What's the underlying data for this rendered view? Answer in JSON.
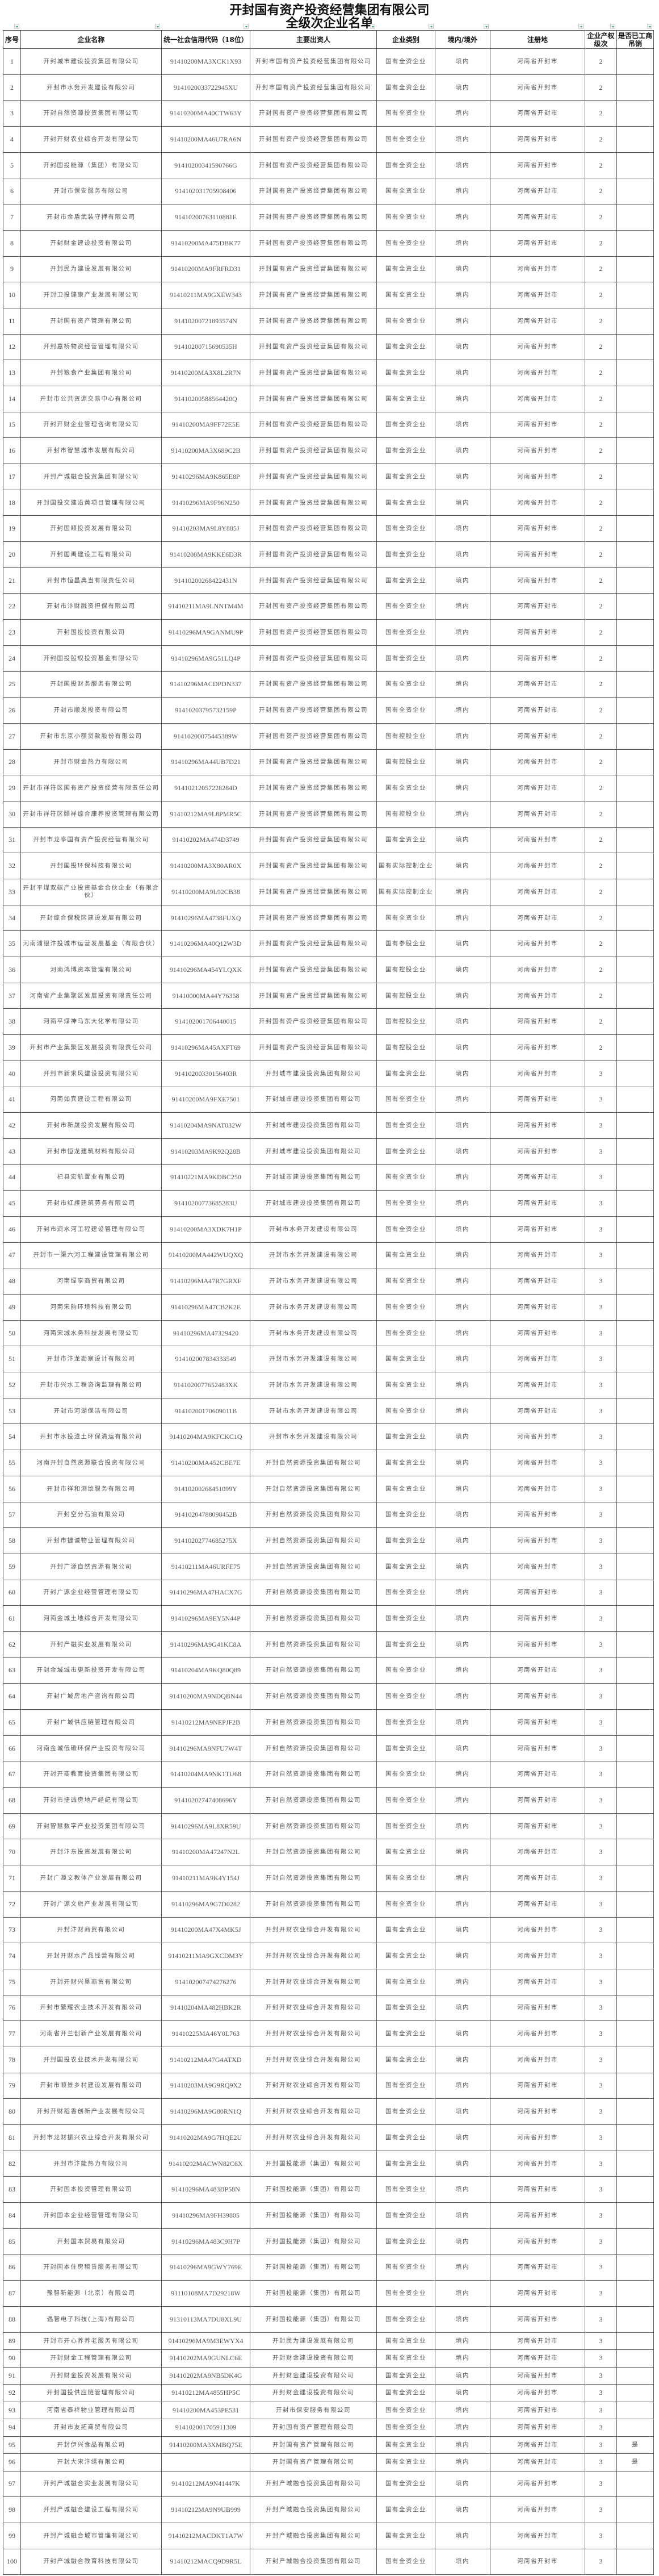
{
  "title": {
    "line1": "开封国有资产投资经营集团有限公司",
    "line2": "全级次企业名单"
  },
  "colors": {
    "filter_arrow": "#2a9d4a",
    "border": "#555555",
    "text": "#555555"
  },
  "columns": [
    "序号",
    "企业名称",
    "统一社会信用代码（18位）",
    "主要出资人",
    "企业类别",
    "境内/境外",
    "注册地",
    "企业产权级次",
    "是否已工商吊销"
  ],
  "rows": [
    [
      "1",
      "开封城市建设投资集团有限公司",
      "91410200MA3XCK1X93",
      "开封市国有资产投资经营集团有限公司",
      "国有全资企业",
      "境内",
      "河南省开封市",
      "2",
      ""
    ],
    [
      "2",
      "开封市水务开发建设有限公司",
      "9141020033722945XU",
      "开封市国有资产投资经营集团有限公司",
      "国有全资企业",
      "境内",
      "河南省开封市",
      "2",
      ""
    ],
    [
      "3",
      "开封自然资源投资集团有限公司",
      "91410200MA40CTW63Y",
      "开封国有资产投资经营集团有限公司",
      "国有全资企业",
      "境内",
      "河南省开封市",
      "2",
      ""
    ],
    [
      "4",
      "开封开财农业综合开发有限公司",
      "91410200MA46U7RA6N",
      "开封国有资产投资经营集团有限公司",
      "国有全资企业",
      "境内",
      "河南省开封市",
      "2",
      ""
    ],
    [
      "5",
      "开封国投能源（集团）有限公司",
      "91410200341590766G",
      "开封国有资产投资经营集团有限公司",
      "国有全资企业",
      "境内",
      "河南省开封市",
      "2",
      ""
    ],
    [
      "6",
      "开封市保安服务有限公司",
      "914102031705908406",
      "开封国有资产投资经营集团有限公司",
      "国有全资企业",
      "境内",
      "河南省开封市",
      "2",
      ""
    ],
    [
      "7",
      "开封市金盾武装守押有限公司",
      "91410200763110881E",
      "开封国有资产投资经营集团有限公司",
      "国有全资企业",
      "境内",
      "河南省开封市",
      "2",
      ""
    ],
    [
      "8",
      "开封财金建设投资有限公司",
      "91410200MA475DBK77",
      "开封国有资产投资经营集团有限公司",
      "国有全资企业",
      "境内",
      "河南省开封市",
      "2",
      ""
    ],
    [
      "9",
      "开封民为建设发展有限公司",
      "91410200MA9FRFRD31",
      "开封国有资产投资经营集团有限公司",
      "国有全资企业",
      "境内",
      "河南省开封市",
      "2",
      ""
    ],
    [
      "10",
      "开封卫投健康产业发展有限公司",
      "91410211MA9GXEW343",
      "开封国有资产投资经营集团有限公司",
      "国有全资企业",
      "境内",
      "河南省开封市",
      "2",
      ""
    ],
    [
      "11",
      "开封国有资产管理有限公司",
      "91410200721893574N",
      "开封国有资产投资经营集团有限公司",
      "国有全资企业",
      "境内",
      "河南省开封市",
      "2",
      ""
    ],
    [
      "12",
      "开封嘉桥物资经营管理有限公司",
      "91410200715690535H",
      "开封国有资产投资经营集团有限公司",
      "国有全资企业",
      "境内",
      "河南省开封市",
      "2",
      ""
    ],
    [
      "13",
      "开封粮食产业集团有限公司",
      "91410200MA3X8L2R7N",
      "开封国有资产投资经营集团有限公司",
      "国有全资企业",
      "境内",
      "河南省开封市",
      "2",
      ""
    ],
    [
      "14",
      "开封市公共资源交易中心有限公司",
      "91410200588564420Q",
      "开封国有资产投资经营集团有限公司",
      "国有全资企业",
      "境内",
      "河南省开封市",
      "2",
      ""
    ],
    [
      "15",
      "开封开财企业管理咨询有限公司",
      "91410200MA9FF72E5E",
      "开封国有资产投资经营集团有限公司",
      "国有全资企业",
      "境内",
      "河南省开封市",
      "2",
      ""
    ],
    [
      "16",
      "开封市智慧城市发展有限公司",
      "91410200MA3X689C2B",
      "开封国有资产投资经营集团有限公司",
      "国有全资企业",
      "境内",
      "河南省开封市",
      "2",
      ""
    ],
    [
      "17",
      "开封产城融合投资集团有限公司",
      "91410296MA9K865E8P",
      "开封国有资产投资经营集团有限公司",
      "国有全资企业",
      "境内",
      "河南省开封市",
      "2",
      ""
    ],
    [
      "18",
      "开封国投交建沿黄项目管理有限公司",
      "91410296MA9F96N250",
      "开封国有资产投资经营集团有限公司",
      "国有全资企业",
      "境内",
      "河南省开封市",
      "2",
      ""
    ],
    [
      "19",
      "开封国顺投资发展有限公司",
      "91410203MA9L8Y885J",
      "开封国有资产投资经营集团有限公司",
      "国有全资企业",
      "境内",
      "河南省开封市",
      "2",
      ""
    ],
    [
      "20",
      "开封国禹建设工程有限公司",
      "91410200MA9KKE6D3R",
      "开封国有资产投资经营集团有限公司",
      "国有全资企业",
      "境内",
      "河南省开封市",
      "2",
      ""
    ],
    [
      "21",
      "开封市恒昌典当有限责任公司",
      "91410200268422431N",
      "开封国有资产投资经营集团有限公司",
      "国有全资企业",
      "境内",
      "河南省开封市",
      "2",
      ""
    ],
    [
      "22",
      "开封市汴财融资担保有限公司",
      "91410211MA9LNNTM4M",
      "开封国有资产投资经营集团有限公司",
      "国有全资企业",
      "境内",
      "河南省开封市",
      "2",
      ""
    ],
    [
      "23",
      "开封国投投资有限公司",
      "91410296MA9GANMU9P",
      "开封国有资产投资经营集团有限公司",
      "国有全资企业",
      "境内",
      "河南省开封市",
      "2",
      ""
    ],
    [
      "24",
      "开封国投股权投资基金有限公司",
      "91410296MA9G51LQ4P",
      "开封国有资产投资经营集团有限公司",
      "国有全资企业",
      "境内",
      "河南省开封市",
      "2",
      ""
    ],
    [
      "25",
      "开封国投财务服务有限公司",
      "91410296MACDPDN337",
      "开封国有资产投资经营集团有限公司",
      "国有全资企业",
      "境内",
      "河南省开封市",
      "2",
      ""
    ],
    [
      "26",
      "开封市顺发投资有限公司",
      "91410203795732159P",
      "开封国有资产投资经营集团有限公司",
      "国有全资企业",
      "境内",
      "河南省开封市",
      "2",
      ""
    ],
    [
      "27",
      "开封市东京小额贷款股份有限公司",
      "91410200075445389W",
      "开封国有资产投资经营集团有限公司",
      "国有控股企业",
      "境内",
      "河南省开封市",
      "2",
      ""
    ],
    [
      "28",
      "开封市财金热力有限公司",
      "91410296MA44UB7D21",
      "开封国有资产投资经营集团有限公司",
      "国有控股企业",
      "境内",
      "河南省开封市",
      "2",
      ""
    ],
    [
      "29",
      "开封市祥符区国有资产投资经营有限责任公司",
      "91410212057228284D",
      "开封国有资产投资经营集团有限公司",
      "国有全资企业",
      "境内",
      "河南省开封市",
      "2",
      ""
    ],
    [
      "30",
      "开封市祥符区颐祥综合康养投资管理有限公司",
      "91410212MA9L8PMR5C",
      "开封国有资产投资经营集团有限公司",
      "国有控股企业",
      "境内",
      "河南省开封市",
      "2",
      ""
    ],
    [
      "31",
      "开封市龙亭国有资产投资经营有限公司",
      "91410202MA474D3749",
      "开封国有资产投资经营集团有限公司",
      "国有全资企业",
      "境内",
      "河南省开封市",
      "2",
      ""
    ],
    [
      "32",
      "开封国投环保科技有限公司",
      "91410200MA3X80AR0X",
      "开封国有资产投资经营集团有限公司",
      "国有实际控制企业",
      "境内",
      "河南省开封市",
      "2",
      ""
    ],
    [
      "33",
      "开封平煤双碳产业投资基金合伙企业（有限合伙）",
      "91410200MA9L92CB38",
      "开封国有资产投资经营集团有限公司",
      "国有实际控制企业",
      "境内",
      "河南省开封市",
      "2",
      ""
    ],
    [
      "34",
      "开封综合保税区建设发展有限公司",
      "91410296MA4738FUXQ",
      "开封国有资产投资经营集团有限公司",
      "国有全资企业",
      "境内",
      "河南省开封市",
      "2",
      ""
    ],
    [
      "35",
      "河南浦银汴投城市运营发展基金（有限合伙）",
      "91410296MA40Q12W3D",
      "开封国有资产投资经营集团有限公司",
      "国有参股企业",
      "境内",
      "河南省开封市",
      "2",
      ""
    ],
    [
      "36",
      "河南鸿博资本管理有限公司",
      "91410296MA454YLQXK",
      "开封国有资产投资经营集团有限公司",
      "国有控股企业",
      "境内",
      "河南省开封市",
      "2",
      ""
    ],
    [
      "37",
      "河南省产业集聚区发展投资有限责任公司",
      "91410000MA44Y76358",
      "开封国有资产投资经营集团有限公司",
      "国有控股企业",
      "境内",
      "河南省开封市",
      "2",
      ""
    ],
    [
      "38",
      "河南平煤神马东大化学有限公司",
      "914102001706440015",
      "开封国有资产投资经营集团有限公司",
      "国有控股企业",
      "境内",
      "河南省开封市",
      "2",
      ""
    ],
    [
      "39",
      "开封市产业集聚区发展投资有限责任公司",
      "91410296MA45AXFT69",
      "开封国有资产投资经营集团有限公司",
      "国有控股企业",
      "境内",
      "河南省开封市",
      "2",
      ""
    ],
    [
      "40",
      "开封市新宋风建设投资有限公司",
      "91410200330156403R",
      "开封城市建设投资集团有限公司",
      "国有全资企业",
      "境内",
      "河南省开封市",
      "3",
      ""
    ],
    [
      "41",
      "河南如宾建设工程有限公司",
      "91410200MA9FXE7501",
      "开封城市建设投资集团有限公司",
      "国有全资企业",
      "境内",
      "河南省开封市",
      "3",
      ""
    ],
    [
      "42",
      "开封市新晟投资发展有限公司",
      "91410204MA9NAT032W",
      "开封城市建设投资集团有限公司",
      "国有全资企业",
      "境内",
      "河南省开封市",
      "3",
      ""
    ],
    [
      "43",
      "开封市恒龙建筑材料有限公司",
      "91410203MA9K92Q28B",
      "开封城市建设投资集团有限公司",
      "国有全资企业",
      "境内",
      "河南省开封市",
      "3",
      ""
    ],
    [
      "44",
      "杞县宏航置业有限公司",
      "91410221MA9KDBC250",
      "开封城市建设投资集团有限公司",
      "国有全资企业",
      "境内",
      "河南省开封市",
      "3",
      ""
    ],
    [
      "45",
      "开封市红旗建筑劳务有限公司",
      "91410200773685283U",
      "开封城市建设投资集团有限公司",
      "国有全资企业",
      "境内",
      "河南省开封市",
      "3",
      ""
    ],
    [
      "46",
      "开封市涧水河工程建设管理有限公司",
      "91410200MA3XDK7H1P",
      "开封市水务开发建设有限公司",
      "国有全资企业",
      "境内",
      "河南省开封市",
      "3",
      ""
    ],
    [
      "47",
      "开封市一渠六河工程建设管理有限公司",
      "91410200MA442WUQXQ",
      "开封市水务开发建设有限公司",
      "国有全资企业",
      "境内",
      "河南省开封市",
      "3",
      ""
    ],
    [
      "48",
      "河南绿享商贸有限公司",
      "91410296MA47R7GRXF",
      "开封市水务开发建设有限公司",
      "国有全资企业",
      "境内",
      "河南省开封市",
      "3",
      ""
    ],
    [
      "49",
      "河南宋韵环境科技有限公司",
      "91410296MA47CB2K2E",
      "开封市水务开发建设有限公司",
      "国有全资企业",
      "境内",
      "河南省开封市",
      "3",
      ""
    ],
    [
      "50",
      "河南宋城水务科技发展有限公司",
      "91410296MA47329420",
      "开封市水务开发建设有限公司",
      "国有全资企业",
      "境内",
      "河南省开封市",
      "3",
      ""
    ],
    [
      "51",
      "开封市汴龙勘察设计有限公司",
      "914102007834333549",
      "开封市水务开发建设有限公司",
      "国有全资企业",
      "境内",
      "河南省开封市",
      "3",
      ""
    ],
    [
      "52",
      "开封市兴水工程咨询监理有限公司",
      "9141020077652483XK",
      "开封市水务开发建设有限公司",
      "国有全资企业",
      "境内",
      "河南省开封市",
      "3",
      ""
    ],
    [
      "53",
      "开封市河湖保洁有限公司",
      "91410200170609011B",
      "开封市水务开发建设有限公司",
      "国有全资企业",
      "境内",
      "河南省开封市",
      "3",
      ""
    ],
    [
      "54",
      "开封市水投渣土环保清运有限公司",
      "91410204MA9KFCKC1Q",
      "开封市水务开发建设有限公司",
      "国有全资企业",
      "境内",
      "河南省开封市",
      "3",
      ""
    ],
    [
      "55",
      "河南开封自然资源联合投资有限公司",
      "91410200MA452CBE7E",
      "开封自然资源投资集团有限公司",
      "国有全资企业",
      "境内",
      "河南省开封市",
      "3",
      ""
    ],
    [
      "56",
      "开封市祥和测绘服务有限公司",
      "91410200268451099Y",
      "开封自然资源投资集团有限公司",
      "国有全资企业",
      "境内",
      "河南省开封市",
      "3",
      ""
    ],
    [
      "57",
      "开封空分石油有限公司",
      "91410204788098452B",
      "开封自然资源投资集团有限公司",
      "国有全资企业",
      "境内",
      "河南省开封市",
      "3",
      ""
    ],
    [
      "58",
      "开封市捷诚物业管理有限公司",
      "91410202774685275X",
      "开封自然资源投资集团有限公司",
      "国有全资企业",
      "境内",
      "河南省开封市",
      "3",
      ""
    ],
    [
      "59",
      "开封广源自然资源有限公司",
      "91410211MA46URFE75",
      "开封自然资源投资集团有限公司",
      "国有全资企业",
      "境内",
      "河南省开封市",
      "3",
      ""
    ],
    [
      "60",
      "开封广源企业经营管理有限公司",
      "91410296MA47HACX7G",
      "开封自然资源投资集团有限公司",
      "国有全资企业",
      "境内",
      "河南省开封市",
      "3",
      ""
    ],
    [
      "61",
      "河南金城土地综合开发有限公司",
      "91410296MA9EY5N44P",
      "开封自然资源投资集团有限公司",
      "国有全资企业",
      "境内",
      "河南省开封市",
      "3",
      ""
    ],
    [
      "62",
      "开封产融实业发展有限公司",
      "91410296MA9G41KC8A",
      "开封自然资源投资集团有限公司",
      "国有全资企业",
      "境内",
      "河南省开封市",
      "3",
      ""
    ],
    [
      "63",
      "开封金城城市更新投资开发有限公司",
      "91410204MA9KQ80Q89",
      "开封自然资源投资集团有限公司",
      "国有全资企业",
      "境内",
      "河南省开封市",
      "3",
      ""
    ],
    [
      "64",
      "开封广城房地产咨询有限公司",
      "91410200MA9NDQBN44",
      "开封自然资源投资集团有限公司",
      "国有全资企业",
      "境内",
      "河南省开封市",
      "3",
      ""
    ],
    [
      "65",
      "开封广城供应链管理有限公司",
      "91410212MA9NEPJF2B",
      "开封自然资源投资集团有限公司",
      "国有全资企业",
      "境内",
      "河南省开封市",
      "3",
      ""
    ],
    [
      "66",
      "河南金城低碳环保产业投资有限公司",
      "91410296MA9NFU7W4T",
      "开封自然资源投资集团有限公司",
      "国有全资企业",
      "境内",
      "河南省开封市",
      "3",
      ""
    ],
    [
      "67",
      "开封开商教育投资集团有限公司",
      "91410204MA9NK1TU68",
      "开封自然资源投资集团有限公司",
      "国有全资企业",
      "境内",
      "河南省开封市",
      "3",
      ""
    ],
    [
      "68",
      "开封市捷诚房地产经纪有限公司",
      "91410202747408696Y",
      "开封自然资源投资集团有限公司",
      "国有全资企业",
      "境内",
      "河南省开封市",
      "3",
      ""
    ],
    [
      "69",
      "开封智慧数字产业投资集团有限公司",
      "91410296MA9L8XR59U",
      "开封自然资源投资集团有限公司",
      "国有全资企业",
      "境内",
      "河南省开封市",
      "3",
      ""
    ],
    [
      "70",
      "开封汴东投资发展有限公司",
      "91410200MA47247N2L",
      "开封自然资源投资集团有限公司",
      "国有全资企业",
      "境内",
      "河南省开封市",
      "3",
      ""
    ],
    [
      "71",
      "开封广源文教体产业发展有限公司",
      "91410211MA9K4Y154J",
      "开封自然资源投资集团有限公司",
      "国有全资企业",
      "境内",
      "河南省开封市",
      "3",
      ""
    ],
    [
      "72",
      "开封广源文旅产业发展有限公司",
      "91410296MA9G7D0282",
      "开封自然资源投资集团有限公司",
      "国有全资企业",
      "境内",
      "河南省开封市",
      "3",
      ""
    ],
    [
      "73",
      "开封汴财商贸有限公司",
      "91410200MA47X4MK5J",
      "开封开财农业综合开发有限公司",
      "国有全资企业",
      "境内",
      "河南省开封市",
      "3",
      ""
    ],
    [
      "74",
      "开封开财水产品经营有限公司",
      "91410211MA9GXCDM3Y",
      "开封开财农业综合开发有限公司",
      "国有全资企业",
      "境内",
      "河南省开封市",
      "3",
      ""
    ],
    [
      "75",
      "开封开财兴垦商贸有限公司",
      "914102007474276276",
      "开封开财农业综合开发有限公司",
      "国有全资企业",
      "境内",
      "河南省开封市",
      "3",
      ""
    ],
    [
      "76",
      "开封市繁耀农业技术开发有限公司",
      "91410204MA482HBK2R",
      "开封开财农业综合开发有限公司",
      "国有全资企业",
      "境内",
      "河南省开封市",
      "3",
      ""
    ],
    [
      "77",
      "河南省开兰创新产业发展有限公司",
      "91410225MA46Y0L763",
      "开封开财农业综合开发有限公司",
      "国有全资企业",
      "境内",
      "河南省开封市",
      "3",
      ""
    ],
    [
      "78",
      "开封国投农业技术开发有限公司",
      "91410212MA47G4ATXD",
      "开封开财农业综合开发有限公司",
      "国有全资企业",
      "境内",
      "河南省开封市",
      "3",
      ""
    ],
    [
      "79",
      "开封市顺景乡村建设发展有限公司",
      "91410203MA9G9RQ9X2",
      "开封开财农业综合开发有限公司",
      "国有全资企业",
      "境内",
      "河南省开封市",
      "3",
      ""
    ],
    [
      "80",
      "开封开财稻香创新产业发展有限公司",
      "91410296MA9G80RN1Q",
      "开封开财农业综合开发有限公司",
      "国有全资企业",
      "境内",
      "河南省开封市",
      "3",
      ""
    ],
    [
      "81",
      "开封市龙财振兴农业综合开发有限公司",
      "91410202MA9G7HQE2U",
      "开封开财农业综合开发有限公司",
      "国有全资企业",
      "境内",
      "河南省开封市",
      "3",
      ""
    ],
    [
      "82",
      "开封市汴能热力有限公司",
      "91410202MACWN82C6X",
      "开封国投能源（集团）有限公司",
      "国有全资企业",
      "境内",
      "河南省开封市",
      "3",
      ""
    ],
    [
      "83",
      "开封国本投资管理有限公司",
      "91410296MA483BP58N",
      "开封国投能源（集团）有限公司",
      "国有全资企业",
      "境内",
      "河南省开封市",
      "3",
      ""
    ],
    [
      "84",
      "开封国本企业经营管理有限公司",
      "91410296MA9FH39805",
      "开封国投能源（集团）有限公司",
      "国有全资企业",
      "境内",
      "河南省开封市",
      "3",
      ""
    ],
    [
      "85",
      "开封国本贸易有限公司",
      "91410296MA483C9H7P",
      "开封国投能源（集团）有限公司",
      "国有全资企业",
      "境内",
      "河南省开封市",
      "3",
      ""
    ],
    [
      "86",
      "开封国本住房租赁服务有限公司",
      "91410296MA9GWY769E",
      "开封国投能源（集团）有限公司",
      "国有全资企业",
      "境内",
      "河南省开封市",
      "3",
      ""
    ],
    [
      "87",
      "豫智新能源（北京）有限公司",
      "91110108MA7D29218W",
      "开封国投能源（集团）有限公司",
      "国有全资企业",
      "境内",
      "河南省开封市",
      "3",
      ""
    ],
    [
      "88",
      "遇智电子科技(上海)有限公司",
      "91310113MA7DU8XL9U",
      "开封国投能源（集团）有限公司",
      "国有全资企业",
      "境内",
      "河南省开封市",
      "3",
      ""
    ],
    [
      "89",
      "开封市开心养养老服务有限公司",
      "91410296MA9M3EWYX4",
      "开封民为建设发展有限公司",
      "国有全资企业",
      "境内",
      "河南省开封市",
      "3",
      ""
    ],
    [
      "90",
      "开封财金工程管理有限公司",
      "91410202MA9GUNLC6E",
      "开封财金建设投资有限公司",
      "国有全资企业",
      "境内",
      "河南省开封市",
      "3",
      ""
    ],
    [
      "91",
      "开封财金投资发展有限公司",
      "91410202MA9NB5DK4G",
      "开封财金建设投资有限公司",
      "国有全资企业",
      "境内",
      "河南省开封市",
      "3",
      ""
    ],
    [
      "92",
      "开封国投供应链管理有限公司",
      "91410212MA4855HP5C",
      "开封财金建设投资有限公司",
      "国有全资企业",
      "境内",
      "河南省开封市",
      "3",
      ""
    ],
    [
      "93",
      "河南省泰祥物业管理有限公司",
      "91410200MA453PE531",
      "开封市保安服务有限公司",
      "国有全资企业",
      "境内",
      "河南省开封市",
      "3",
      ""
    ],
    [
      "94",
      "开封市友拓商贸有限公司",
      "914102001705911309",
      "开封国有资产管理有限公司",
      "国有全资企业",
      "境内",
      "河南省开封市",
      "3",
      ""
    ],
    [
      "95",
      "开封伊兴食品有限公司",
      "91410200MA3XMBQ75E",
      "开封国有资产管理有限公司",
      "国有全资企业",
      "境内",
      "河南省开封市",
      "3",
      "是"
    ],
    [
      "96",
      "开封大宋汴绣有限公司",
      "",
      "开封国有资产管理有限公司",
      "国有全资企业",
      "境内",
      "河南省开封市",
      "3",
      "是"
    ],
    [
      "97",
      "开封产城融合实业发展有限公司",
      "91410212MA9N41447K",
      "开封产城融合投资集团有限公司",
      "国有全资企业",
      "境内",
      "河南省开封市",
      "3",
      ""
    ],
    [
      "98",
      "开封产城融合建设工程有限公司",
      "91410212MA9N9UB999",
      "开封产城融合投资集团有限公司",
      "国有全资企业",
      "境内",
      "河南省开封市",
      "3",
      ""
    ],
    [
      "99",
      "开封产城融合城市管理有限公司",
      "91410212MACDKT1A7W",
      "开封产城融合投资集团有限公司",
      "国有全资企业",
      "境内",
      "河南省开封市",
      "3",
      ""
    ],
    [
      "100",
      "开封产城融合教育科技有限公司",
      "91410212MACQ9D9R5L",
      "开封产城融合投资集团有限公司",
      "国有全资企业",
      "境内",
      "河南省开封市",
      "3",
      ""
    ]
  ]
}
